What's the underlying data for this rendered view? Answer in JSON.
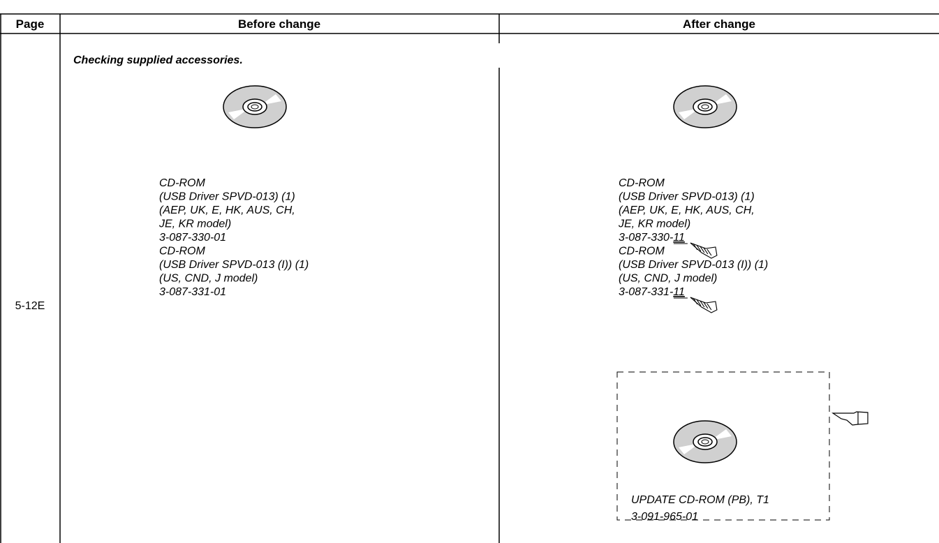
{
  "table": {
    "headers": [
      "Page",
      "Before change",
      "After change"
    ],
    "rows": [
      {
        "page": "5-12E",
        "section_title": "Checking supplied accessories.",
        "before": [
          "CD-ROM",
          "(USB Driver SPVD-013) (1)",
          "(AEP, UK, E, HK, AUS, CH,",
          "JE, KR model)",
          "3-087-330-01",
          "CD-ROM",
          "(USB Driver SPVD-013 (I)) (1)",
          "(US, CND, J model)",
          "3-087-331-01"
        ],
        "after": {
          "lines": [
            "CD-ROM",
            "(USB Driver SPVD-013) (1)",
            "(AEP, UK, E, HK, AUS, CH,",
            "JE, KR model)",
            {
              "text": "3-087-330-",
              "revised": "11"
            },
            "CD-ROM",
            "(USB Driver SPVD-013 (I)) (1)",
            "(US, CND, J model)",
            {
              "text": "3-087-331-",
              "revised": "11"
            }
          ],
          "added_item": [
            "UPDATE CD-ROM (PB), T1",
            "3-091-965-01"
          ]
        }
      }
    ]
  }
}
